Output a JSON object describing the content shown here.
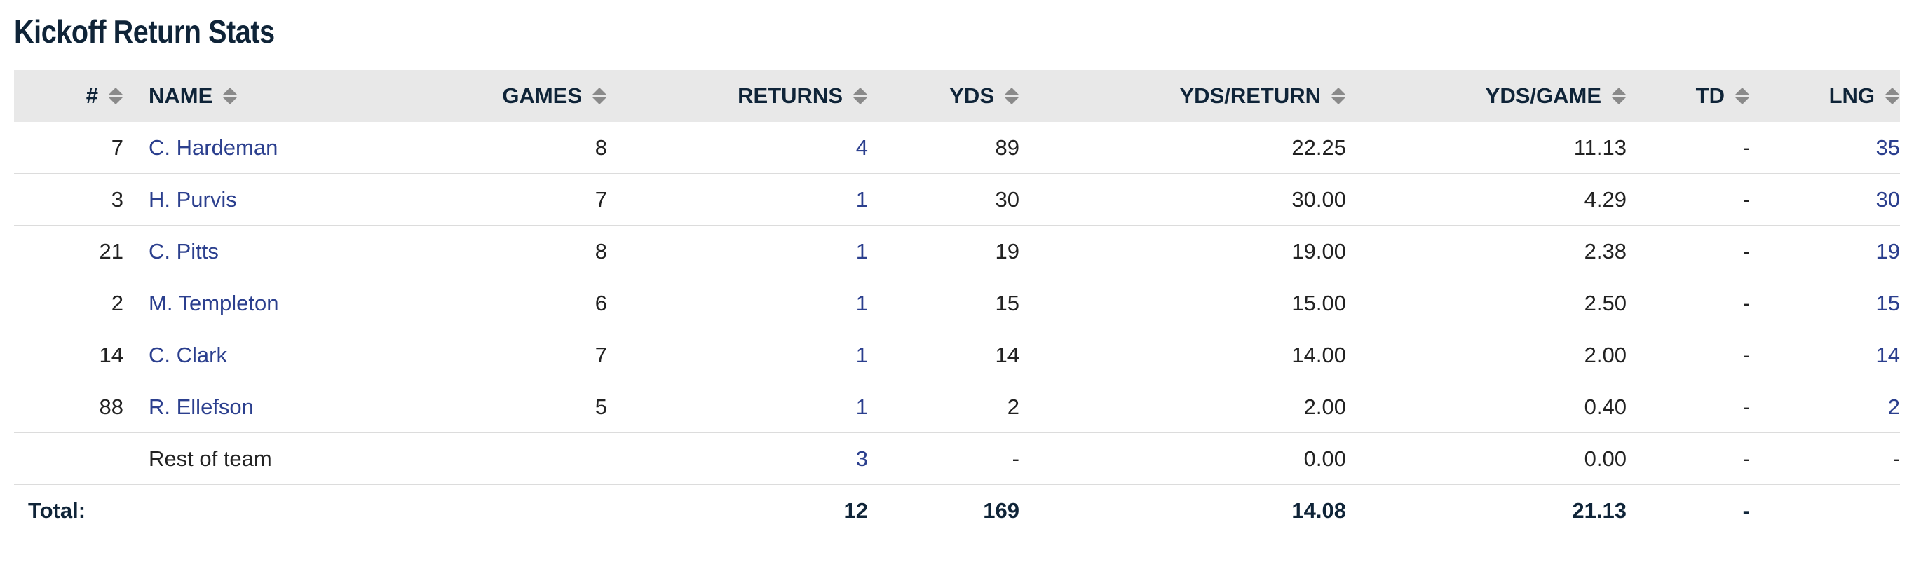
{
  "page": {
    "title": "Kickoff Return Stats"
  },
  "table": {
    "columns": [
      {
        "key": "num",
        "label": "#"
      },
      {
        "key": "name",
        "label": "NAME"
      },
      {
        "key": "games",
        "label": "GAMES"
      },
      {
        "key": "returns",
        "label": "RETURNS"
      },
      {
        "key": "yds",
        "label": "YDS"
      },
      {
        "key": "yds_return",
        "label": "YDS/RETURN"
      },
      {
        "key": "yds_game",
        "label": "YDS/GAME"
      },
      {
        "key": "td",
        "label": "TD"
      },
      {
        "key": "lng",
        "label": "LNG"
      }
    ],
    "rows": [
      {
        "num": "7",
        "name": "C. Hardeman",
        "games": "8",
        "returns": "4",
        "yds": "89",
        "yds_return": "22.25",
        "yds_game": "11.13",
        "td": "-",
        "lng": "35"
      },
      {
        "num": "3",
        "name": "H. Purvis",
        "games": "7",
        "returns": "1",
        "yds": "30",
        "yds_return": "30.00",
        "yds_game": "4.29",
        "td": "-",
        "lng": "30"
      },
      {
        "num": "21",
        "name": "C. Pitts",
        "games": "8",
        "returns": "1",
        "yds": "19",
        "yds_return": "19.00",
        "yds_game": "2.38",
        "td": "-",
        "lng": "19"
      },
      {
        "num": "2",
        "name": "M. Templeton",
        "games": "6",
        "returns": "1",
        "yds": "15",
        "yds_return": "15.00",
        "yds_game": "2.50",
        "td": "-",
        "lng": "15"
      },
      {
        "num": "14",
        "name": "C. Clark",
        "games": "7",
        "returns": "1",
        "yds": "14",
        "yds_return": "14.00",
        "yds_game": "2.00",
        "td": "-",
        "lng": "14"
      },
      {
        "num": "88",
        "name": "R. Ellefson",
        "games": "5",
        "returns": "1",
        "yds": "2",
        "yds_return": "2.00",
        "yds_game": "0.40",
        "td": "-",
        "lng": "2"
      }
    ],
    "rest_of_team": {
      "name": "Rest of team",
      "returns": "3",
      "yds": "-",
      "yds_return": "0.00",
      "yds_game": "0.00",
      "td": "-",
      "lng": "-"
    },
    "total": {
      "label": "Total:",
      "returns": "12",
      "yds": "169",
      "yds_return": "14.08",
      "yds_game": "21.13",
      "td": "-"
    }
  },
  "colors": {
    "header_bg": "#e8e8e8",
    "link": "#2b3f8e",
    "heading": "#0f2438",
    "sort_icon": "#8a8a8a"
  },
  "icons": {
    "sort": "sort-icon"
  }
}
